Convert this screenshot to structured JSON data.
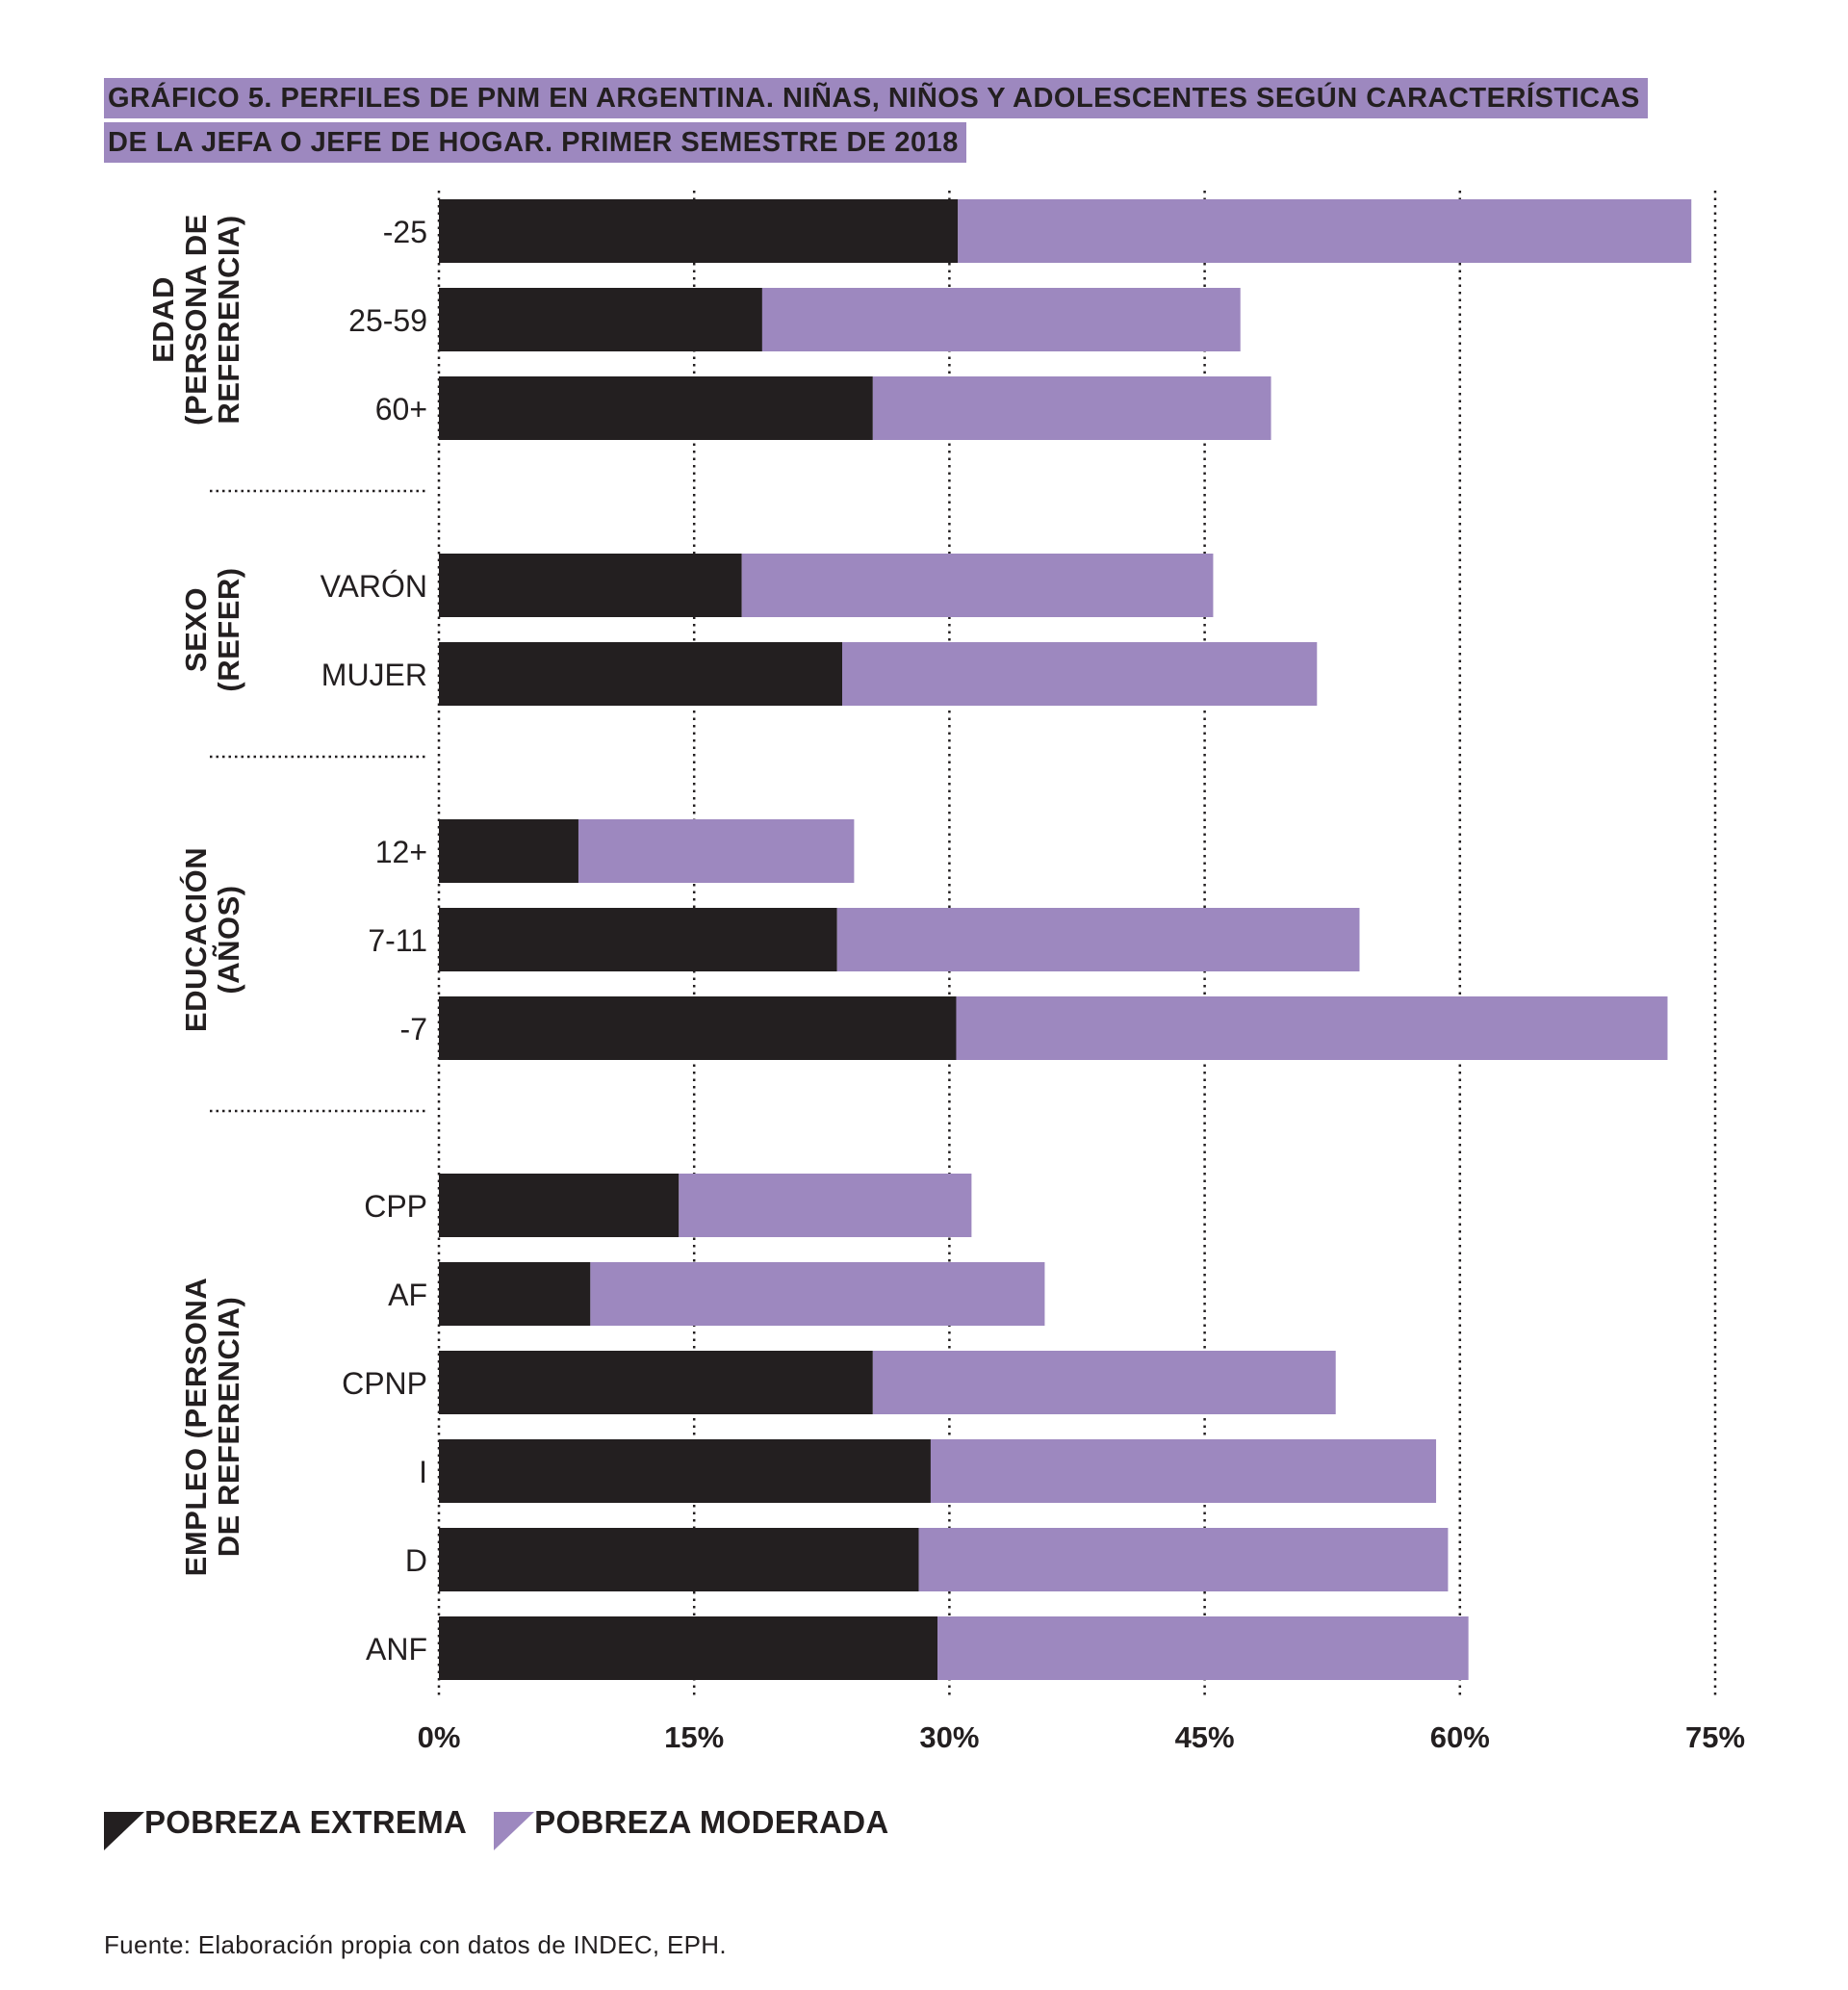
{
  "title": {
    "line1": "GRÁFICO 5. PERFILES DE PNM EN ARGENTINA. NIÑAS, NIÑOS Y ADOLESCENTES SEGÚN CARACTERÍSTICAS",
    "line2": "DE LA JEFA O JEFE DE HOGAR. PRIMER SEMESTRE DE 2018"
  },
  "colors": {
    "extrema": "#231f20",
    "moderada": "#9d88bf",
    "highlight": "#9d88bf"
  },
  "legend": [
    {
      "label": "POBREZA EXTREMA",
      "color": "#231f20"
    },
    {
      "label": "POBREZA MODERADA",
      "color": "#9d88bf"
    }
  ],
  "source": "Fuente: Elaboración propia con datos de INDEC, EPH.",
  "chart_data": {
    "type": "bar",
    "orientation": "horizontal",
    "stacked": true,
    "xlim": [
      0,
      75
    ],
    "x_ticks": [
      "0%",
      "15%",
      "30%",
      "45%",
      "60%",
      "75%"
    ],
    "x_tick_values": [
      0,
      15,
      30,
      45,
      60,
      75
    ],
    "grid": "vertical dotted",
    "legend_position": "bottom-left",
    "groups": [
      {
        "label_lines": [
          "EDAD",
          "(PERSONA DE",
          "REFERENCIA)"
        ],
        "categories": [
          "-25",
          "25-59",
          "60+"
        ],
        "extrema": [
          30.5,
          19.0,
          25.5
        ],
        "moderada": [
          43.1,
          28.1,
          23.4
        ]
      },
      {
        "label_lines": [
          "SEXO",
          "(REFER)"
        ],
        "categories": [
          "VARÓN",
          "MUJER"
        ],
        "extrema": [
          17.8,
          23.7
        ],
        "moderada": [
          27.7,
          27.9
        ]
      },
      {
        "label_lines": [
          "EDUCACIÓN",
          "(AÑOS)"
        ],
        "categories": [
          "12+",
          "7-11",
          "-7"
        ],
        "extrema": [
          8.2,
          23.4,
          30.4
        ],
        "moderada": [
          16.2,
          30.7,
          41.8
        ]
      },
      {
        "label_lines": [
          "EMPLEO (PERSONA",
          "DE REFERENCIA)"
        ],
        "categories": [
          "CPP",
          "AF",
          "CPNP",
          "I",
          "D",
          "ANF"
        ],
        "extrema": [
          14.1,
          8.9,
          25.5,
          28.9,
          28.2,
          29.3
        ],
        "moderada": [
          17.2,
          26.7,
          27.2,
          29.7,
          31.1,
          31.2
        ]
      }
    ],
    "series": [
      {
        "name": "POBREZA EXTREMA"
      },
      {
        "name": "POBREZA MODERADA"
      }
    ]
  }
}
